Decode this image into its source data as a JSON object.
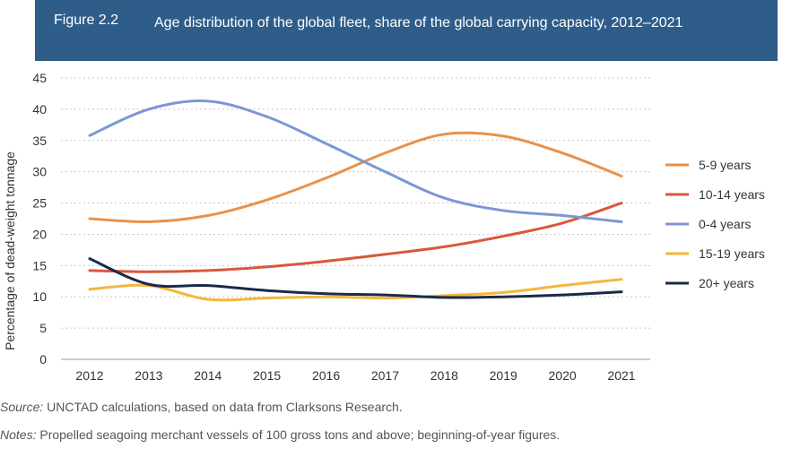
{
  "figure": {
    "label": "Figure 2.2",
    "title": "Age distribution of the global fleet, share of the global carrying capacity, 2012–2021"
  },
  "footer": {
    "source_label": "Source:",
    "source_text": " UNCTAD calculations, based on data from Clarksons Research.",
    "notes_label": "Notes:",
    "notes_text": " Propelled seagoing merchant vessels of 100 gross tons and above; beginning-of-year figures."
  },
  "chart_data": {
    "type": "line",
    "title": "Age distribution of the global fleet, share of the global carrying capacity, 2012–2021",
    "xlabel": "",
    "ylabel": "Percentage of dead-weight tonnage",
    "x": [
      2012,
      2013,
      2014,
      2015,
      2016,
      2017,
      2018,
      2019,
      2020,
      2021
    ],
    "ylim": [
      0,
      45
    ],
    "yticks": [
      0,
      5,
      10,
      15,
      20,
      25,
      30,
      35,
      40,
      45
    ],
    "grid": "horizontal dotted",
    "legend": "right",
    "series": [
      {
        "name": "5-9 years",
        "color": "#e8914a",
        "values": [
          22.5,
          22,
          23,
          25.5,
          29,
          33,
          36,
          35.7,
          33,
          29.3
        ]
      },
      {
        "name": "10-14 years",
        "color": "#d9573b",
        "values": [
          14.2,
          14,
          14.2,
          14.8,
          15.7,
          16.8,
          18,
          19.7,
          21.8,
          25
        ]
      },
      {
        "name": "0-4 years",
        "color": "#7b97d4",
        "values": [
          35.8,
          40,
          41.3,
          38.8,
          34.5,
          30,
          25.8,
          23.8,
          23,
          22
        ]
      },
      {
        "name": "15-19 years",
        "color": "#f3b73c",
        "values": [
          11.2,
          11.8,
          9.6,
          9.8,
          10,
          9.8,
          10.2,
          10.7,
          11.8,
          12.8
        ]
      },
      {
        "name": "20+ years",
        "color": "#1b2a4a",
        "values": [
          16.1,
          12,
          11.8,
          11,
          10.5,
          10.3,
          9.9,
          10,
          10.3,
          10.8
        ]
      }
    ]
  }
}
